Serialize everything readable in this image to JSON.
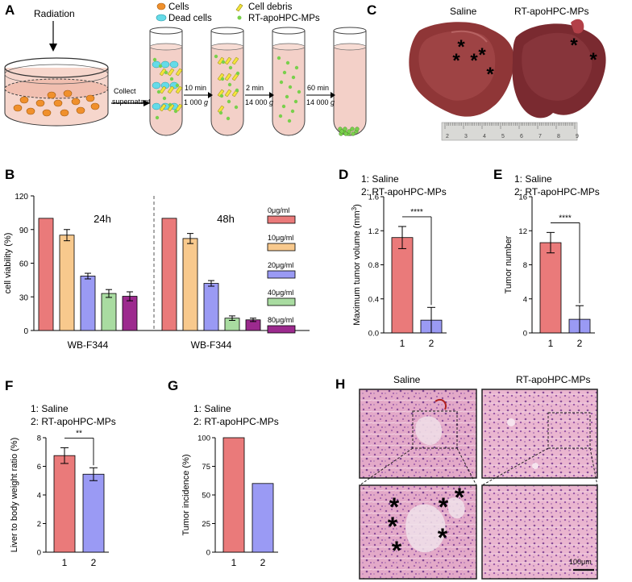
{
  "colors": {
    "red": "#ea7a7a",
    "orange": "#f8c98d",
    "blue": "#9a9af4",
    "green": "#a9dca1",
    "purple": "#9c2a8e",
    "cell_orange": "#f0902c",
    "dead_cyan": "#65dbe8",
    "debris_yellow": "#f3e33a",
    "mp_green": "#79d04c",
    "tube_fluid": "#f3d0c8"
  },
  "panels": {
    "A": "A",
    "B": "B",
    "C": "C",
    "D": "D",
    "E": "E",
    "F": "F",
    "G": "G",
    "H": "H"
  },
  "panel_a": {
    "radiation": "Radiation",
    "collect_line1": "Collect",
    "collect_line2": "supernatant",
    "legend": [
      "Cells",
      "Dead cells",
      "Cell debris",
      "RT-apoHPC-MPs"
    ],
    "steps": [
      {
        "time": "10 min",
        "force": "1 000",
        "unit": "g"
      },
      {
        "time": "2 min",
        "force": "14 000",
        "unit": "g"
      },
      {
        "time": "60 min",
        "force": "14 000",
        "unit": "g"
      }
    ]
  },
  "panel_c": {
    "labels": [
      "Saline",
      "RT-apoHPC-MPs"
    ],
    "ruler_ticks": [
      "2",
      "3",
      "4",
      "5",
      "6",
      "7",
      "8",
      "9"
    ],
    "star": "*"
  },
  "panel_h": {
    "labels": [
      "Saline",
      "RT-apoHPC-MPs"
    ],
    "scale_bar": "100μm",
    "star": "*"
  },
  "group_legend": {
    "line1": "1: Saline",
    "line2": "2: RT-apoHPC-MPs"
  },
  "chart_data": [
    {
      "id": "B",
      "type": "bar",
      "ylabel": "cell viability (%)",
      "ylim": [
        0,
        120
      ],
      "yticks": [
        0,
        30,
        60,
        90,
        120
      ],
      "groups": [
        {
          "label": "24h",
          "xlabel": "WB-F344",
          "values": [
            100,
            85,
            48.5,
            33,
            30.5
          ],
          "errors": [
            0,
            5,
            2.5,
            3.5,
            4
          ]
        },
        {
          "label": "48h",
          "xlabel": "WB-F344",
          "values": [
            100,
            82,
            42,
            11,
            9.5
          ],
          "errors": [
            0,
            4.5,
            2.5,
            2,
            1.5
          ]
        }
      ],
      "series": [
        {
          "name": "0μg/ml",
          "color": "#ea7a7a"
        },
        {
          "name": "10μg/ml",
          "color": "#f8c98d"
        },
        {
          "name": "20μg/ml",
          "color": "#9a9af4"
        },
        {
          "name": "40μg/ml",
          "color": "#a9dca1"
        },
        {
          "name": "80μg/ml",
          "color": "#9c2a8e"
        }
      ],
      "legend_position": "right"
    },
    {
      "id": "D",
      "type": "bar",
      "ylabel": "Maximum tumor volume (mm",
      "ylabel_sup": "3",
      "ylabel_end": ")",
      "categories": [
        "1",
        "2"
      ],
      "values": [
        1.12,
        0.15
      ],
      "errors": [
        0.13,
        0.15
      ],
      "ylim": [
        0,
        1.6
      ],
      "yticks": [
        "0.0",
        "0.4",
        "0.8",
        "1.2",
        "1.6"
      ],
      "significance": "****"
    },
    {
      "id": "E",
      "type": "bar",
      "ylabel": "Tumor number",
      "categories": [
        "1",
        "2"
      ],
      "values": [
        10.6,
        1.6
      ],
      "errors": [
        1.2,
        1.6
      ],
      "ylim": [
        0,
        16
      ],
      "yticks": [
        "0",
        "4",
        "8",
        "12",
        "16"
      ],
      "significance": "****"
    },
    {
      "id": "F",
      "type": "bar",
      "ylabel": "Liver to body weight ratio (%)",
      "categories": [
        "1",
        "2"
      ],
      "values": [
        6.75,
        5.45
      ],
      "errors": [
        0.55,
        0.45
      ],
      "ylim": [
        0,
        8
      ],
      "yticks": [
        "0",
        "2",
        "4",
        "6",
        "8"
      ],
      "significance": "**"
    },
    {
      "id": "G",
      "type": "bar",
      "ylabel": "Tumor incidence (%)",
      "categories": [
        "1",
        "2"
      ],
      "values": [
        100,
        60
      ],
      "errors": [
        0,
        0
      ],
      "ylim": [
        0,
        100
      ],
      "yticks": [
        "0",
        "25",
        "50",
        "75",
        "100"
      ],
      "significance": ""
    }
  ]
}
